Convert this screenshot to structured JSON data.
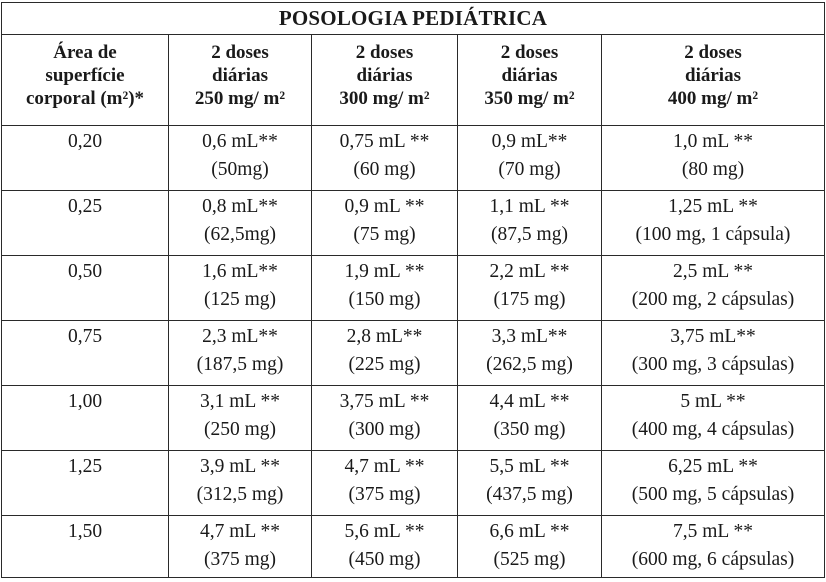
{
  "title": "POSOLOGIA PEDIÁTRICA",
  "headers": [
    [
      "Área de",
      "superfície",
      "corporal (m²)*"
    ],
    [
      "2 doses",
      "diárias",
      "250 mg/ m²"
    ],
    [
      "2 doses",
      "diárias",
      "300 mg/ m²"
    ],
    [
      "2 doses",
      "diárias",
      "350 mg/ m²"
    ],
    [
      "2 doses",
      "diárias",
      "400 mg/ m²"
    ]
  ],
  "rows": [
    {
      "area": "0,20",
      "cells": [
        [
          "0,6 mL**",
          "(50mg)"
        ],
        [
          "0,75 mL **",
          "(60 mg)"
        ],
        [
          "0,9 mL**",
          "(70 mg)"
        ],
        [
          "1,0 mL **",
          "(80 mg)"
        ]
      ]
    },
    {
      "area": "0,25",
      "cells": [
        [
          "0,8 mL**",
          "(62,5mg)"
        ],
        [
          "0,9 mL **",
          "(75 mg)"
        ],
        [
          "1,1 mL **",
          "(87,5 mg)"
        ],
        [
          "1,25 mL **",
          "(100 mg, 1 cápsula)"
        ]
      ]
    },
    {
      "area": "0,50",
      "cells": [
        [
          "1,6 mL**",
          "(125 mg)"
        ],
        [
          "1,9 mL **",
          "(150 mg)"
        ],
        [
          "2,2 mL **",
          "(175 mg)"
        ],
        [
          "2,5 mL **",
          "(200 mg, 2 cápsulas)"
        ]
      ]
    },
    {
      "area": "0,75",
      "cells": [
        [
          "2,3 mL**",
          "(187,5 mg)"
        ],
        [
          "2,8 mL**",
          "(225 mg)"
        ],
        [
          "3,3 mL**",
          "(262,5 mg)"
        ],
        [
          "3,75 mL**",
          "(300 mg, 3 cápsulas)"
        ]
      ]
    },
    {
      "area": "1,00",
      "cells": [
        [
          "3,1 mL **",
          "(250 mg)"
        ],
        [
          "3,75 mL **",
          "(300 mg)"
        ],
        [
          "4,4 mL **",
          "(350 mg)"
        ],
        [
          "5 mL **",
          "(400 mg, 4 cápsulas)"
        ]
      ]
    },
    {
      "area": "1,25",
      "cells": [
        [
          "3,9 mL **",
          "(312,5 mg)"
        ],
        [
          "4,7 mL **",
          "(375 mg)"
        ],
        [
          "5,5 mL **",
          "(437,5 mg)"
        ],
        [
          "6,25 mL **",
          "(500 mg, 5 cápsulas)"
        ]
      ]
    },
    {
      "area": "1,50",
      "cells": [
        [
          "4,7 mL **",
          "(375 mg)"
        ],
        [
          "5,6 mL **",
          "(450 mg)"
        ],
        [
          "6,6 mL **",
          "(525 mg)"
        ],
        [
          "7,5 mL **",
          "(600 mg, 6 cápsulas)"
        ]
      ]
    }
  ]
}
